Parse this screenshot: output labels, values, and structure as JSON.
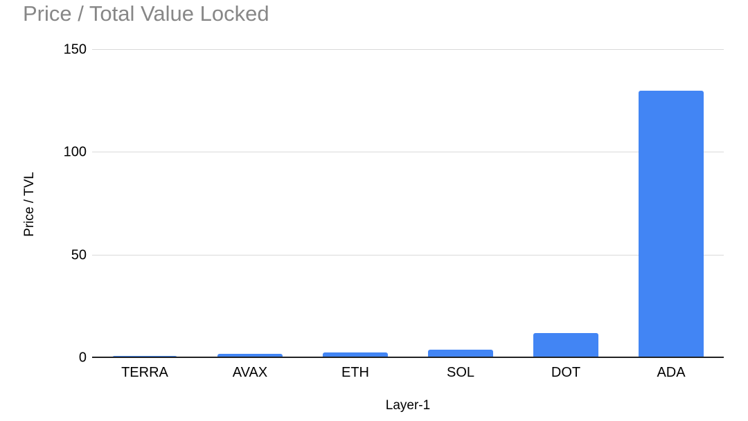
{
  "chart": {
    "title": "Price / Total Value Locked",
    "y_axis_title": "Price / TVL",
    "x_axis_title": "Layer-1"
  },
  "chart_data": {
    "type": "bar",
    "title": "Price / Total Value Locked",
    "xlabel": "Layer-1",
    "ylabel": "Price / TVL",
    "categories": [
      "TERRA",
      "AVAX",
      "ETH",
      "SOL",
      "DOT",
      "ADA"
    ],
    "values": [
      1,
      2,
      2.6,
      4,
      12,
      130
    ],
    "ylim": [
      0,
      150
    ],
    "yticks": [
      0,
      50,
      100,
      150
    ],
    "grid": true,
    "legend": "none",
    "bar_color": "#4285F4"
  },
  "colors": {
    "bar": "#4285F4",
    "title_text": "#878787",
    "gridline": "#d9d9d9",
    "axis_line": "#212121",
    "tick_text": "#000000",
    "background": "#ffffff"
  }
}
